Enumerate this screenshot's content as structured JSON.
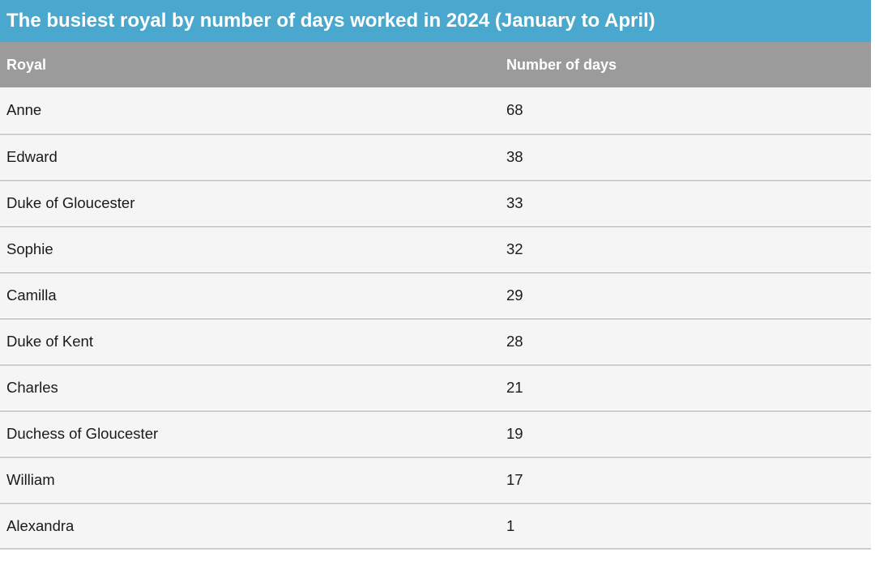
{
  "title": "The busiest royal by number of days worked in 2024 (January to April)",
  "columns": {
    "royal": "Royal",
    "days": "Number of days"
  },
  "rows": [
    {
      "royal": "Anne",
      "days": "68"
    },
    {
      "royal": "Edward",
      "days": "38"
    },
    {
      "royal": "Duke of Gloucester",
      "days": "33"
    },
    {
      "royal": "Sophie",
      "days": "32"
    },
    {
      "royal": "Camilla",
      "days": "29"
    },
    {
      "royal": "Duke of Kent",
      "days": "28"
    },
    {
      "royal": "Charles",
      "days": "21"
    },
    {
      "royal": "Duchess of Gloucester",
      "days": "19"
    },
    {
      "royal": "William",
      "days": "17"
    },
    {
      "royal": "Alexandra",
      "days": "1"
    }
  ],
  "colors": {
    "title_bar": "#4aa7cd",
    "header_row": "#9b9b9b",
    "row_background": "#f5f5f5",
    "divider": "#cdcdcd",
    "title_text": "#ffffff",
    "row_text": "#1a1a1a"
  },
  "chart_data": {
    "type": "table",
    "title": "The busiest royal by number of days worked in 2024 (January to April)",
    "columns": [
      "Royal",
      "Number of days"
    ],
    "categories": [
      "Anne",
      "Edward",
      "Duke of Gloucester",
      "Sophie",
      "Camilla",
      "Duke of Kent",
      "Charles",
      "Duchess of Gloucester",
      "William",
      "Alexandra"
    ],
    "values": [
      68,
      38,
      33,
      32,
      29,
      28,
      21,
      19,
      17,
      1
    ]
  }
}
